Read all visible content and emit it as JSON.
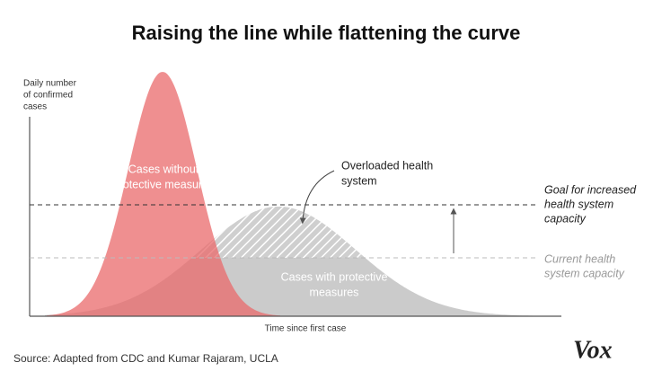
{
  "header": {
    "title": "Raising the line while flattening the curve"
  },
  "axes": {
    "y_label": [
      "Daily number",
      "of confirmed",
      "cases"
    ],
    "x_label": "Time since first case"
  },
  "annotations": {
    "without_measures": [
      "Cases without",
      "protective measures"
    ],
    "overloaded": [
      "Overloaded health",
      "system"
    ],
    "with_measures": [
      "Cases with protective",
      "measures"
    ],
    "goal_capacity": [
      "Goal for increased",
      "health system",
      "capacity"
    ],
    "current_capacity": [
      "Current health",
      "system capacity"
    ]
  },
  "footer": {
    "source": "Source: Adapted from CDC and Kumar Rajaram, UCLA",
    "logo": "Vox"
  }
}
